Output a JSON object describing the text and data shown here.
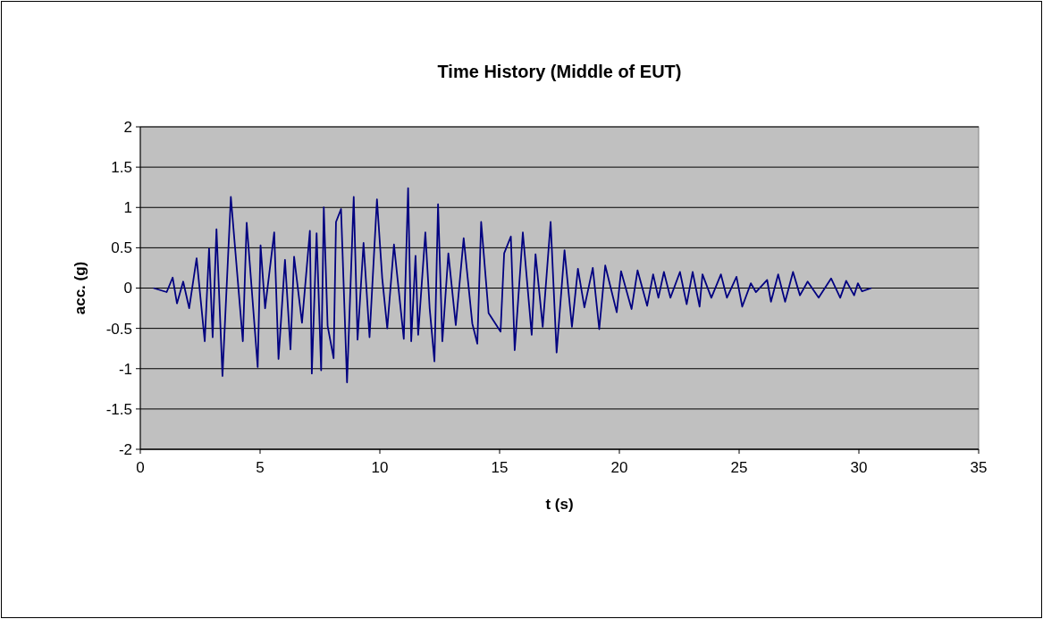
{
  "chart_data": {
    "type": "line",
    "title": "Time History (Middle of EUT)",
    "xlabel": "t (s)",
    "ylabel": "acc. (g)",
    "xlim": [
      0,
      35
    ],
    "xticks": [
      0,
      5,
      10,
      15,
      20,
      25,
      30,
      35
    ],
    "ylim": [
      -2,
      2
    ],
    "yticks": [
      -2,
      -1.5,
      -1,
      -0.5,
      0,
      0.5,
      1,
      1.5,
      2
    ],
    "grid": "y",
    "series": [
      {
        "color": "#000080",
        "x": [
          0.55,
          1.1,
          1.35,
          1.53,
          1.79,
          2.04,
          2.35,
          2.69,
          2.87,
          3.02,
          3.18,
          3.43,
          3.78,
          4.28,
          4.44,
          4.9,
          5.02,
          5.21,
          5.59,
          5.77,
          6.04,
          6.27,
          6.42,
          6.75,
          7.08,
          7.16,
          7.36,
          7.55,
          7.66,
          7.82,
          8.07,
          8.17,
          8.38,
          8.63,
          8.91,
          9.07,
          9.32,
          9.57,
          9.88,
          10.1,
          10.31,
          10.59,
          11.0,
          11.18,
          11.31,
          11.49,
          11.6,
          11.9,
          12.08,
          12.28,
          12.43,
          12.61,
          12.86,
          13.17,
          13.5,
          13.86,
          14.07,
          14.23,
          14.54,
          15.04,
          15.19,
          15.47,
          15.63,
          15.97,
          16.34,
          16.5,
          16.8,
          17.13,
          17.38,
          17.71,
          18.02,
          18.27,
          18.54,
          18.89,
          19.16,
          19.41,
          19.89,
          20.07,
          20.51,
          20.76,
          21.16,
          21.41,
          21.63,
          21.86,
          22.13,
          22.53,
          22.81,
          23.06,
          23.35,
          23.47,
          23.84,
          24.24,
          24.49,
          24.89,
          25.13,
          25.49,
          25.7,
          26.17,
          26.33,
          26.63,
          26.92,
          27.25,
          27.54,
          27.86,
          28.32,
          28.84,
          29.22,
          29.47,
          29.8,
          29.96,
          30.13,
          30.52
        ],
        "values": [
          0,
          -0.05,
          0.13,
          -0.19,
          0.08,
          -0.25,
          0.37,
          -0.66,
          0.49,
          -0.61,
          0.73,
          -1.09,
          1.13,
          -0.66,
          0.81,
          -0.98,
          0.53,
          -0.25,
          0.69,
          -0.88,
          0.35,
          -0.76,
          0.39,
          -0.43,
          0.71,
          -1.06,
          0.68,
          -1.02,
          1.0,
          -0.47,
          -0.87,
          0.82,
          0.98,
          -1.17,
          1.13,
          -0.64,
          0.56,
          -0.61,
          1.1,
          0.12,
          -0.5,
          0.54,
          -0.63,
          1.24,
          -0.66,
          0.4,
          -0.58,
          0.69,
          -0.25,
          -0.91,
          1.04,
          -0.66,
          0.43,
          -0.46,
          0.62,
          -0.44,
          -0.69,
          0.82,
          -0.31,
          -0.54,
          0.43,
          0.64,
          -0.77,
          0.69,
          -0.58,
          0.42,
          -0.48,
          0.82,
          -0.8,
          0.47,
          -0.48,
          0.24,
          -0.24,
          0.25,
          -0.51,
          0.28,
          -0.3,
          0.21,
          -0.26,
          0.22,
          -0.22,
          0.17,
          -0.12,
          0.2,
          -0.12,
          0.2,
          -0.2,
          0.2,
          -0.23,
          0.17,
          -0.12,
          0.17,
          -0.12,
          0.14,
          -0.23,
          0.06,
          -0.05,
          0.1,
          -0.17,
          0.17,
          -0.17,
          0.2,
          -0.09,
          0.08,
          -0.12,
          0.12,
          -0.12,
          0.09,
          -0.09,
          0.06,
          -0.04,
          0
        ]
      }
    ]
  }
}
